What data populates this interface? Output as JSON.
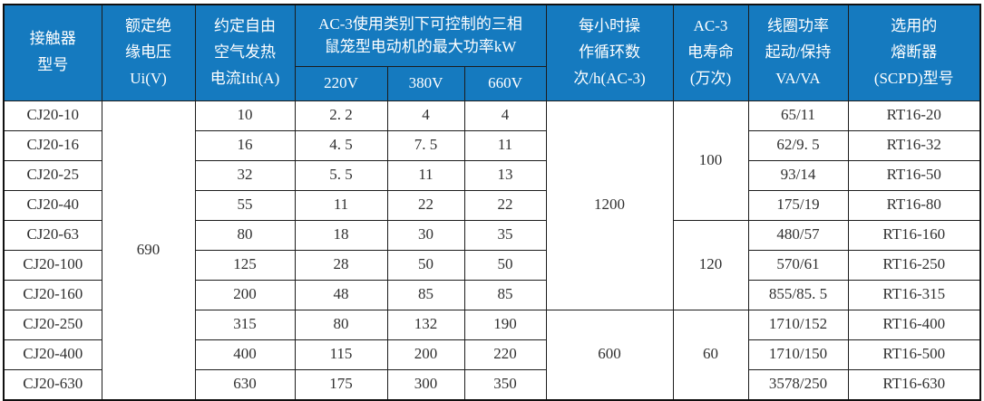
{
  "colors": {
    "header_bg": "#157ABF",
    "header_text": "#ffffff",
    "grid_border": "#1c1c1c",
    "outer_border": "#101010",
    "cell_text": "#303030",
    "cell_bg": "#ffffff"
  },
  "header": {
    "contactor_model": "接触器\n型号",
    "rated_insulation_voltage": "额定绝\n缘电压\nUi(V)",
    "thermal_current": "约定自由\n空气发热\n电流Ith(A)",
    "ac3_power_group": "AC-3使用类别下可控制的三相\n鼠笼型电动机的最大功率kW",
    "v220": "220V",
    "v380": "380V",
    "v660": "660V",
    "cycles_per_hour": "每小时操\n作循环数\n次/h(AC-3)",
    "ac3_life": "AC-3\n电寿命\n(万次)",
    "coil_power": "线圈功率\n起动/保持\nVA/VA",
    "fuse": "选用的\n熔断器\n(SCPD)型号"
  },
  "table": {
    "rows": [
      {
        "model": "CJ20-10",
        "ith": "10",
        "p220": "2. 2",
        "p380": "4",
        "p660": "4",
        "coil": "65/11",
        "fuse": "RT16-20"
      },
      {
        "model": "CJ20-16",
        "ith": "16",
        "p220": "4. 5",
        "p380": "7. 5",
        "p660": "11",
        "coil": "62/9. 5",
        "fuse": "RT16-32"
      },
      {
        "model": "CJ20-25",
        "ith": "32",
        "p220": "5. 5",
        "p380": "11",
        "p660": "13",
        "coil": "93/14",
        "fuse": "RT16-50"
      },
      {
        "model": "CJ20-40",
        "ith": "55",
        "p220": "11",
        "p380": "22",
        "p660": "22",
        "coil": "175/19",
        "fuse": "RT16-80"
      },
      {
        "model": "CJ20-63",
        "ith": "80",
        "p220": "18",
        "p380": "30",
        "p660": "35",
        "coil": "480/57",
        "fuse": "RT16-160"
      },
      {
        "model": "CJ20-100",
        "ith": "125",
        "p220": "28",
        "p380": "50",
        "p660": "50",
        "coil": "570/61",
        "fuse": "RT16-250"
      },
      {
        "model": "CJ20-160",
        "ith": "200",
        "p220": "48",
        "p380": "85",
        "p660": "85",
        "coil": "855/85. 5",
        "fuse": "RT16-315"
      },
      {
        "model": "CJ20-250",
        "ith": "315",
        "p220": "80",
        "p380": "132",
        "p660": "190",
        "coil": "1710/152",
        "fuse": "RT16-400"
      },
      {
        "model": "CJ20-400",
        "ith": "400",
        "p220": "115",
        "p380": "200",
        "p660": "220",
        "coil": "1710/150",
        "fuse": "RT16-500"
      },
      {
        "model": "CJ20-630",
        "ith": "630",
        "p220": "175",
        "p380": "300",
        "p660": "350",
        "coil": "3578/250",
        "fuse": "RT16-630"
      }
    ],
    "merged": {
      "ui_voltage": {
        "value": "690",
        "start": 0,
        "rowspan": 10
      },
      "cycles": [
        {
          "value": "1200",
          "start": 0,
          "rowspan": 7
        },
        {
          "value": "600",
          "start": 7,
          "rowspan": 3
        }
      ],
      "life": [
        {
          "value": "100",
          "start": 0,
          "rowspan": 4
        },
        {
          "value": "120",
          "start": 4,
          "rowspan": 3
        },
        {
          "value": "60",
          "start": 7,
          "rowspan": 3
        }
      ]
    }
  }
}
